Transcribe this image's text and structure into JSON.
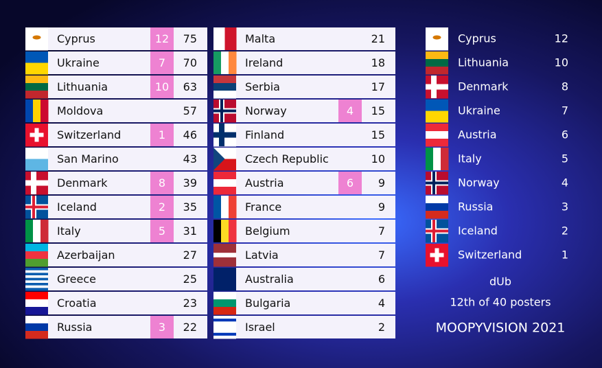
{
  "scoreboard": {
    "columns": [
      [
        {
          "country": "Cyprus",
          "points": 12,
          "total": 75
        },
        {
          "country": "Ukraine",
          "points": 7,
          "total": 70
        },
        {
          "country": "Lithuania",
          "points": 10,
          "total": 63
        },
        {
          "country": "Moldova",
          "total": 57
        },
        {
          "country": "Switzerland",
          "points": 1,
          "total": 46
        },
        {
          "country": "San Marino",
          "total": 43
        },
        {
          "country": "Denmark",
          "points": 8,
          "total": 39
        },
        {
          "country": "Iceland",
          "points": 2,
          "total": 35
        },
        {
          "country": "Italy",
          "points": 5,
          "total": 31
        },
        {
          "country": "Azerbaijan",
          "total": 27
        },
        {
          "country": "Greece",
          "total": 25
        },
        {
          "country": "Croatia",
          "total": 23
        },
        {
          "country": "Russia",
          "points": 3,
          "total": 22
        }
      ],
      [
        {
          "country": "Malta",
          "total": 21
        },
        {
          "country": "Ireland",
          "total": 18
        },
        {
          "country": "Serbia",
          "total": 17
        },
        {
          "country": "Norway",
          "points": 4,
          "total": 15
        },
        {
          "country": "Finland",
          "total": 15
        },
        {
          "country": "Czech Republic",
          "total": 10
        },
        {
          "country": "Austria",
          "points": 6,
          "total": 9
        },
        {
          "country": "France",
          "total": 9
        },
        {
          "country": "Belgium",
          "total": 7
        },
        {
          "country": "Latvia",
          "total": 7
        },
        {
          "country": "Australia",
          "total": 6
        },
        {
          "country": "Bulgaria",
          "total": 4
        },
        {
          "country": "Israel",
          "total": 2
        }
      ]
    ]
  },
  "votes": {
    "rows": [
      {
        "country": "Cyprus",
        "points": 12
      },
      {
        "country": "Lithuania",
        "points": 10
      },
      {
        "country": "Denmark",
        "points": 8
      },
      {
        "country": "Ukraine",
        "points": 7
      },
      {
        "country": "Austria",
        "points": 6
      },
      {
        "country": "Italy",
        "points": 5
      },
      {
        "country": "Norway",
        "points": 4
      },
      {
        "country": "Russia",
        "points": 3
      },
      {
        "country": "Iceland",
        "points": 2
      },
      {
        "country": "Switzerland",
        "points": 1
      }
    ]
  },
  "voter": "dUb",
  "rank": "12th of 40 posters",
  "event": "MOOPYVISION 2021"
}
